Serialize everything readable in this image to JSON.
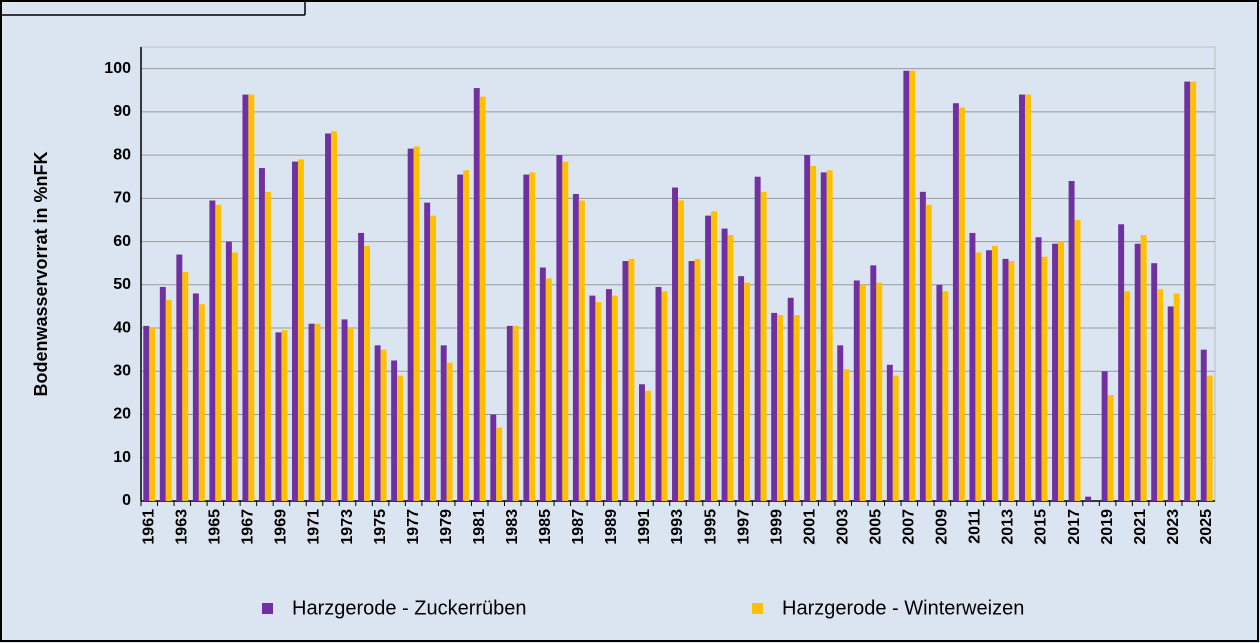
{
  "chart_data": {
    "type": "bar",
    "y_label": "Bodenwasservorrat in %nFK",
    "categories": [
      "1961",
      null,
      "1963",
      null,
      "1965",
      null,
      "1967",
      null,
      "1969",
      null,
      "1971",
      null,
      "1973",
      null,
      "1975",
      null,
      "1977",
      null,
      "1979",
      null,
      "1981",
      null,
      "1983",
      null,
      "1985",
      null,
      "1987",
      null,
      "1989",
      null,
      "1991",
      null,
      "1993",
      null,
      "1995",
      null,
      "1997",
      null,
      "1999",
      null,
      "2001",
      null,
      "2003",
      null,
      "2005",
      null,
      "2007",
      null,
      "2009",
      null,
      "2011",
      null,
      "2013",
      null,
      "2015",
      null,
      "2017",
      null,
      "2019",
      null,
      "2021",
      null,
      "2023",
      null,
      "2025"
    ],
    "series": [
      {
        "name": "Harzgerode - Zuckerrüben",
        "color": "#7030a0",
        "values": [
          40.5,
          49.5,
          57,
          48,
          69.5,
          60,
          94,
          77,
          39,
          78.5,
          41,
          85,
          42,
          62,
          36,
          32.5,
          81.5,
          69,
          36,
          75.5,
          95.5,
          20,
          40.5,
          75.5,
          54,
          80,
          71,
          47.5,
          49,
          55.5,
          27,
          49.5,
          72.5,
          55.5,
          66,
          63,
          52,
          75,
          43.5,
          47,
          80,
          76,
          36,
          51,
          54.5,
          31.5,
          99.5,
          71.5,
          50,
          92,
          62,
          58,
          56,
          94,
          61,
          59.5,
          74,
          1,
          30,
          64,
          59.5,
          55,
          45,
          97,
          35
        ]
      },
      {
        "name": "Harzgerode - Winterweizen",
        "color": "#ffc000",
        "values": [
          40,
          46.5,
          53,
          45.5,
          68.5,
          57.5,
          94,
          71.5,
          39.5,
          79,
          41,
          85.5,
          40,
          59,
          35,
          29,
          82,
          66,
          32,
          76.5,
          93.5,
          17,
          40.5,
          76,
          51.5,
          78.5,
          69.5,
          46,
          47.5,
          56,
          25.5,
          48.5,
          69.5,
          56,
          67,
          61.5,
          50.5,
          71.5,
          43,
          43,
          77.5,
          76.5,
          30.5,
          50,
          50.5,
          29,
          99.5,
          68.5,
          48.5,
          91,
          57.5,
          59,
          55.5,
          94,
          56.5,
          60,
          65,
          0,
          24.5,
          48.5,
          61.5,
          49,
          48,
          97,
          29
        ]
      }
    ],
    "ylim": [
      0,
      105
    ],
    "yticks": [
      0,
      10,
      20,
      30,
      40,
      50,
      60,
      70,
      80,
      90,
      100
    ],
    "grid": true
  }
}
